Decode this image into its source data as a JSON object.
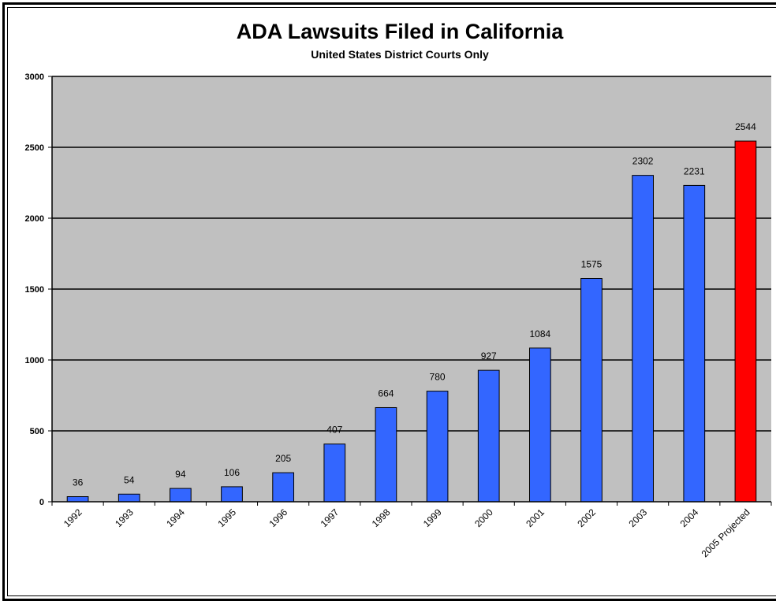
{
  "chart_data": {
    "type": "bar",
    "title": "ADA Lawsuits Filed in California",
    "subtitle": "United States District Courts Only",
    "xlabel": "",
    "ylabel": "",
    "categories": [
      "1992",
      "1993",
      "1994",
      "1995",
      "1996",
      "1997",
      "1998",
      "1999",
      "2000",
      "2001",
      "2002",
      "2003",
      "2004",
      "2005 Projected"
    ],
    "values": [
      36,
      54,
      94,
      106,
      205,
      407,
      664,
      780,
      927,
      1084,
      1575,
      2302,
      2231,
      2544
    ],
    "value_labels": [
      "36",
      "54",
      "94",
      "106",
      "205",
      "407",
      "664",
      "780",
      "927",
      "1084",
      "1575",
      "2302",
      "2231",
      "2544"
    ],
    "ylim": [
      0,
      3000
    ],
    "yticks": [
      0,
      500,
      1000,
      1500,
      2000,
      2500,
      3000
    ],
    "grid": true,
    "legend": "none",
    "colors": {
      "bar": "#3366ff",
      "highlight_bar": "#ff0000",
      "plot_background": "#c0c0c0",
      "gridline": "#000000"
    },
    "highlight_index": 13
  }
}
